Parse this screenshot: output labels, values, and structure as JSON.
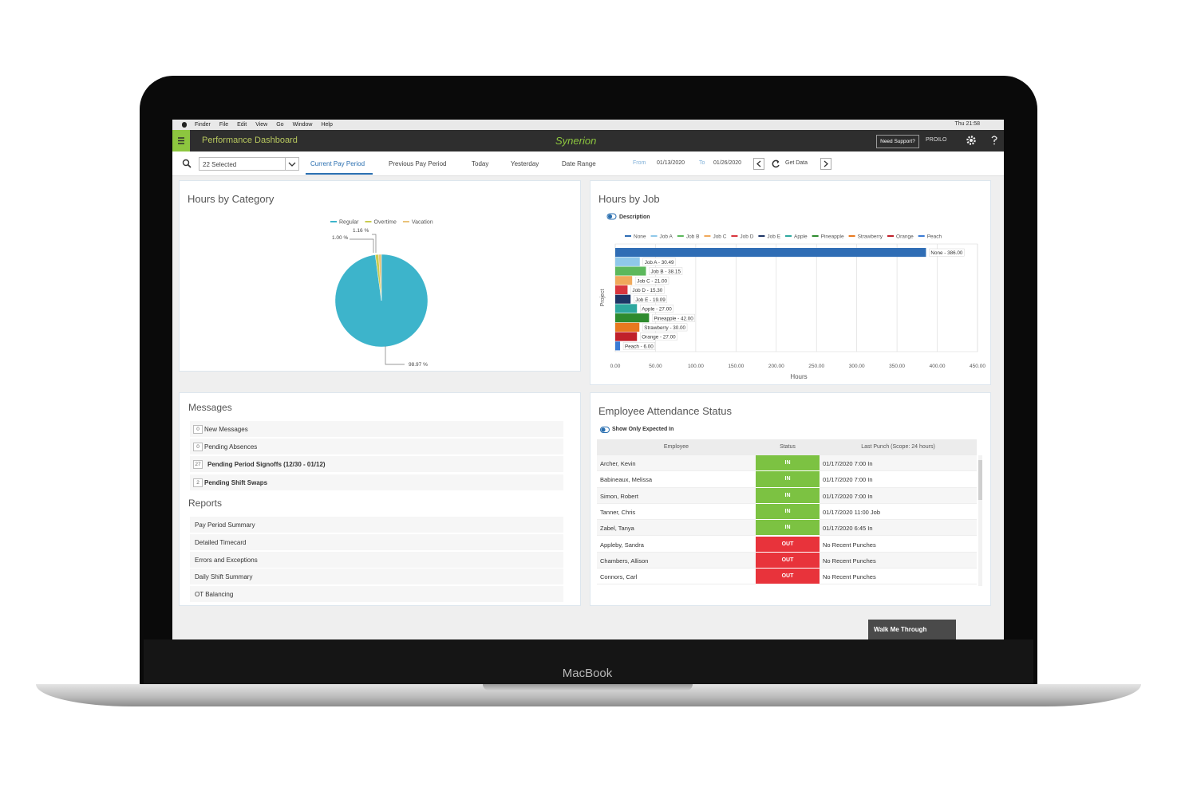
{
  "menu_bar": {
    "items": [
      "Finder",
      "File",
      "Edit",
      "View",
      "Go",
      "Window",
      "Help"
    ],
    "clock": "Thu 21:58"
  },
  "header": {
    "title": "Performance Dashboard",
    "brand": "Synerion",
    "support": "Need Support?",
    "user": "PROILO"
  },
  "toolbar": {
    "selection": "22 Selected",
    "tabs": [
      "Current Pay Period",
      "Previous Pay Period",
      "Today",
      "Yesterday",
      "Date Range"
    ],
    "from_label": "From",
    "from": "01/13/2020",
    "to_label": "To",
    "to": "01/26/2020",
    "get_data": "Get Data"
  },
  "chart_data": [
    {
      "type": "pie",
      "title": "Hours by Category",
      "categories": [
        "Regular",
        "Overtime",
        "Vacation"
      ],
      "values": [
        98.97,
        1.16,
        1.0
      ],
      "value_labels": [
        "98.97 %",
        "1.16 %",
        "1.00 %"
      ],
      "colors": [
        "#3db4cb",
        "#c9cb4e",
        "#e9c27a"
      ]
    },
    {
      "type": "bar",
      "orientation": "horizontal",
      "title": "Hours by Job",
      "legend_title": "Description",
      "categories": [
        "None",
        "Job A",
        "Job B",
        "Job C",
        "Job D",
        "Job E",
        "Apple",
        "Pineapple",
        "Strawberry",
        "Orange",
        "Peach"
      ],
      "values": [
        386.0,
        30.49,
        38.15,
        21.0,
        15.3,
        19.09,
        27.0,
        42.0,
        30.0,
        27.0,
        6.0
      ],
      "value_labels": [
        "None - 386.00",
        "Job A - 30.49",
        "Job B - 38.15",
        "Job C - 21.00",
        "Job D - 15.30",
        "Job E - 19.09",
        "Apple - 27.00",
        "Pineapple - 42.00",
        "Strawberry - 30.00",
        "Orange - 27.00",
        "Peach - 6.00"
      ],
      "colors": [
        "#2f6db5",
        "#8fc8ea",
        "#5cb85c",
        "#f0a95b",
        "#d9363e",
        "#1d3566",
        "#2ea89f",
        "#2e8b2e",
        "#e8791f",
        "#c0202a",
        "#3a7bd5"
      ],
      "xlim": [
        0,
        450
      ],
      "xticks": [
        {
          "value": 0,
          "label": "0.00"
        },
        {
          "value": 50,
          "label": "50.00"
        },
        {
          "value": 100,
          "label": "100.00"
        },
        {
          "value": 150,
          "label": "150.00"
        },
        {
          "value": 200,
          "label": "200.00"
        },
        {
          "value": 250,
          "label": "250.00"
        },
        {
          "value": 300,
          "label": "300.00"
        },
        {
          "value": 350,
          "label": "350.00"
        },
        {
          "value": 400,
          "label": "400.00"
        },
        {
          "value": 450,
          "label": "450.00"
        }
      ],
      "xlabel": "Hours",
      "ylabel": "Project",
      "grid": true
    }
  ],
  "messages": {
    "title": "Messages",
    "items": [
      {
        "count": 0,
        "label": "New Messages"
      },
      {
        "count": 0,
        "label": "Pending Absences"
      },
      {
        "count": 27,
        "label": "Pending Period Signoffs (12/30 - 01/12)"
      },
      {
        "count": 2,
        "label": "Pending Shift Swaps"
      }
    ]
  },
  "reports": {
    "title": "Reports",
    "items": [
      "Pay Period Summary",
      "Detailed Timecard",
      "Errors and Exceptions",
      "Daily Shift Summary",
      "OT Balancing"
    ]
  },
  "attendance": {
    "title": "Employee Attendance Status",
    "toggle": "Show Only Expected In",
    "columns": [
      "Employee",
      "Status",
      "Last Punch (Scope: 24 hours)"
    ],
    "status_colors": {
      "IN": "#7cc242",
      "OUT": "#e8333b"
    },
    "rows": [
      [
        "Archer, Kevin",
        "IN",
        "01/17/2020 7:00 In"
      ],
      [
        "Babineaux, Melissa",
        "IN",
        "01/17/2020 7:00 In"
      ],
      [
        "Simon, Robert",
        "IN",
        "01/17/2020 7:00 In"
      ],
      [
        "Tanner, Chris",
        "IN",
        "01/17/2020 11:00 Job"
      ],
      [
        "Zabel, Tanya",
        "IN",
        "01/17/2020 6:45 In"
      ],
      [
        "Appleby, Sandra",
        "OUT",
        "No Recent Punches"
      ],
      [
        "Chambers, Allison",
        "OUT",
        "No Recent Punches"
      ],
      [
        "Connors, Carl",
        "OUT",
        "No Recent Punches"
      ]
    ]
  },
  "walk_me_through": "Walk Me Through",
  "laptop_label": "MacBook"
}
